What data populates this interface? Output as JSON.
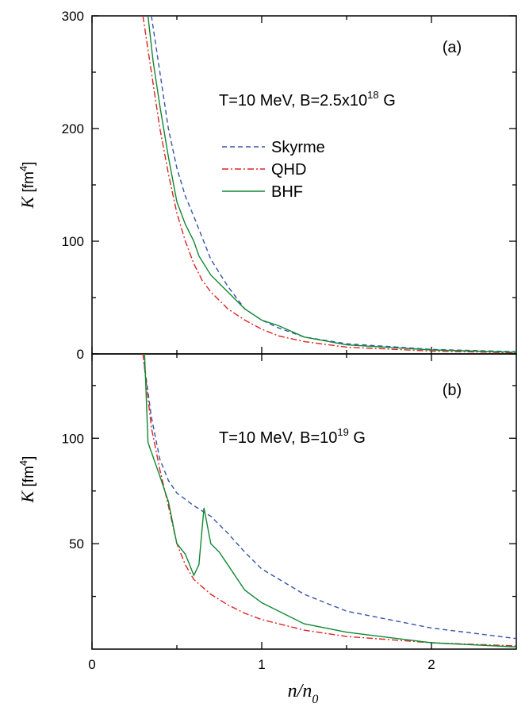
{
  "figure": {
    "xlabel": {
      "main": "n/n",
      "sub": "0"
    },
    "legend": [
      {
        "name": "Skyrme",
        "color": "#3355aa",
        "dash": "6,4"
      },
      {
        "name": "QHD",
        "color": "#dd2222",
        "dash": "8,3,2,3"
      },
      {
        "name": "BHF",
        "color": "#118833",
        "dash": ""
      }
    ]
  },
  "chart_data": [
    {
      "type": "line",
      "panel_tag": "(a)",
      "annotation": {
        "prefix": "T=10 MeV, B=2.5x10",
        "sup": "18",
        "suffix": " G"
      },
      "ylabel": {
        "italic": "K",
        "unit_open": " [fm",
        "unit_sup": "4",
        "unit_close": "]"
      },
      "xlim": [
        0,
        2.5
      ],
      "ylim": [
        0,
        300
      ],
      "xticks": [
        0,
        1,
        2
      ],
      "xtick_labels": [
        "0",
        "1",
        "2"
      ],
      "yticks": [
        0,
        100,
        200,
        300
      ],
      "ytick_labels": [
        "0",
        "100",
        "200",
        "300"
      ],
      "grid": false,
      "legend_position": "center",
      "series": [
        {
          "name": "Skyrme",
          "x": [
            0.35,
            0.4,
            0.45,
            0.5,
            0.55,
            0.6,
            0.65,
            0.7,
            0.8,
            0.9,
            1.0,
            1.1,
            1.25,
            1.5,
            2.0,
            2.5
          ],
          "y": [
            300,
            250,
            200,
            165,
            140,
            122,
            103,
            84,
            60,
            40,
            30,
            23,
            15,
            9,
            4,
            2
          ]
        },
        {
          "name": "QHD",
          "x": [
            0.3,
            0.35,
            0.4,
            0.45,
            0.5,
            0.55,
            0.6,
            0.65,
            0.7,
            0.8,
            0.9,
            1.0,
            1.1,
            1.25,
            1.5,
            2.0,
            2.5
          ],
          "y": [
            300,
            250,
            200,
            160,
            125,
            100,
            80,
            65,
            55,
            40,
            30,
            22,
            16,
            11,
            6,
            2.5,
            1
          ]
        },
        {
          "name": "BHF",
          "x": [
            0.33,
            0.36,
            0.4,
            0.45,
            0.5,
            0.55,
            0.6,
            0.63,
            0.7,
            0.8,
            0.9,
            1.0,
            1.1,
            1.25,
            1.5,
            2.0,
            2.5
          ],
          "y": [
            300,
            260,
            220,
            175,
            135,
            115,
            100,
            87,
            70,
            55,
            40,
            30,
            25,
            15,
            8,
            3.5,
            1.5
          ]
        }
      ]
    },
    {
      "type": "line",
      "panel_tag": "(b)",
      "annotation": {
        "prefix": "T=10 MeV, B=10",
        "sup": "19",
        "suffix": " G"
      },
      "ylabel": {
        "italic": "K",
        "unit_open": " [fm",
        "unit_sup": "4",
        "unit_close": "]"
      },
      "xlim": [
        0,
        2.5
      ],
      "ylim": [
        0,
        140
      ],
      "xticks": [
        0,
        1,
        2
      ],
      "xtick_labels": [
        "0",
        "1",
        "2"
      ],
      "yticks": [
        50,
        100
      ],
      "ytick_labels": [
        "50",
        "100"
      ],
      "grid": false,
      "series": [
        {
          "name": "Skyrme",
          "x": [
            0.3,
            0.35,
            0.4,
            0.45,
            0.5,
            0.55,
            0.6,
            0.7,
            0.8,
            0.9,
            1.0,
            1.25,
            1.5,
            2.0,
            2.5
          ],
          "y": [
            140,
            110,
            90,
            80,
            74,
            71,
            68,
            63,
            55,
            46,
            38,
            26,
            18,
            10,
            5
          ]
        },
        {
          "name": "QHD",
          "x": [
            0.3,
            0.35,
            0.4,
            0.45,
            0.5,
            0.55,
            0.6,
            0.7,
            0.8,
            0.9,
            1.0,
            1.1,
            1.25,
            1.5,
            2.0,
            2.5
          ],
          "y": [
            140,
            105,
            85,
            68,
            50,
            40,
            33,
            26,
            21,
            17,
            14,
            12,
            9,
            6,
            3,
            1.5
          ]
        },
        {
          "name": "BHF",
          "x": [
            0.31,
            0.33,
            0.4,
            0.45,
            0.5,
            0.55,
            0.6,
            0.63,
            0.66,
            0.7,
            0.75,
            0.8,
            0.9,
            1.0,
            1.25,
            1.5,
            2.0,
            2.5
          ],
          "y": [
            140,
            98,
            82,
            70,
            50,
            45,
            35,
            40,
            67,
            50,
            46,
            40,
            28,
            22,
            12,
            8,
            3,
            1
          ]
        }
      ]
    }
  ]
}
